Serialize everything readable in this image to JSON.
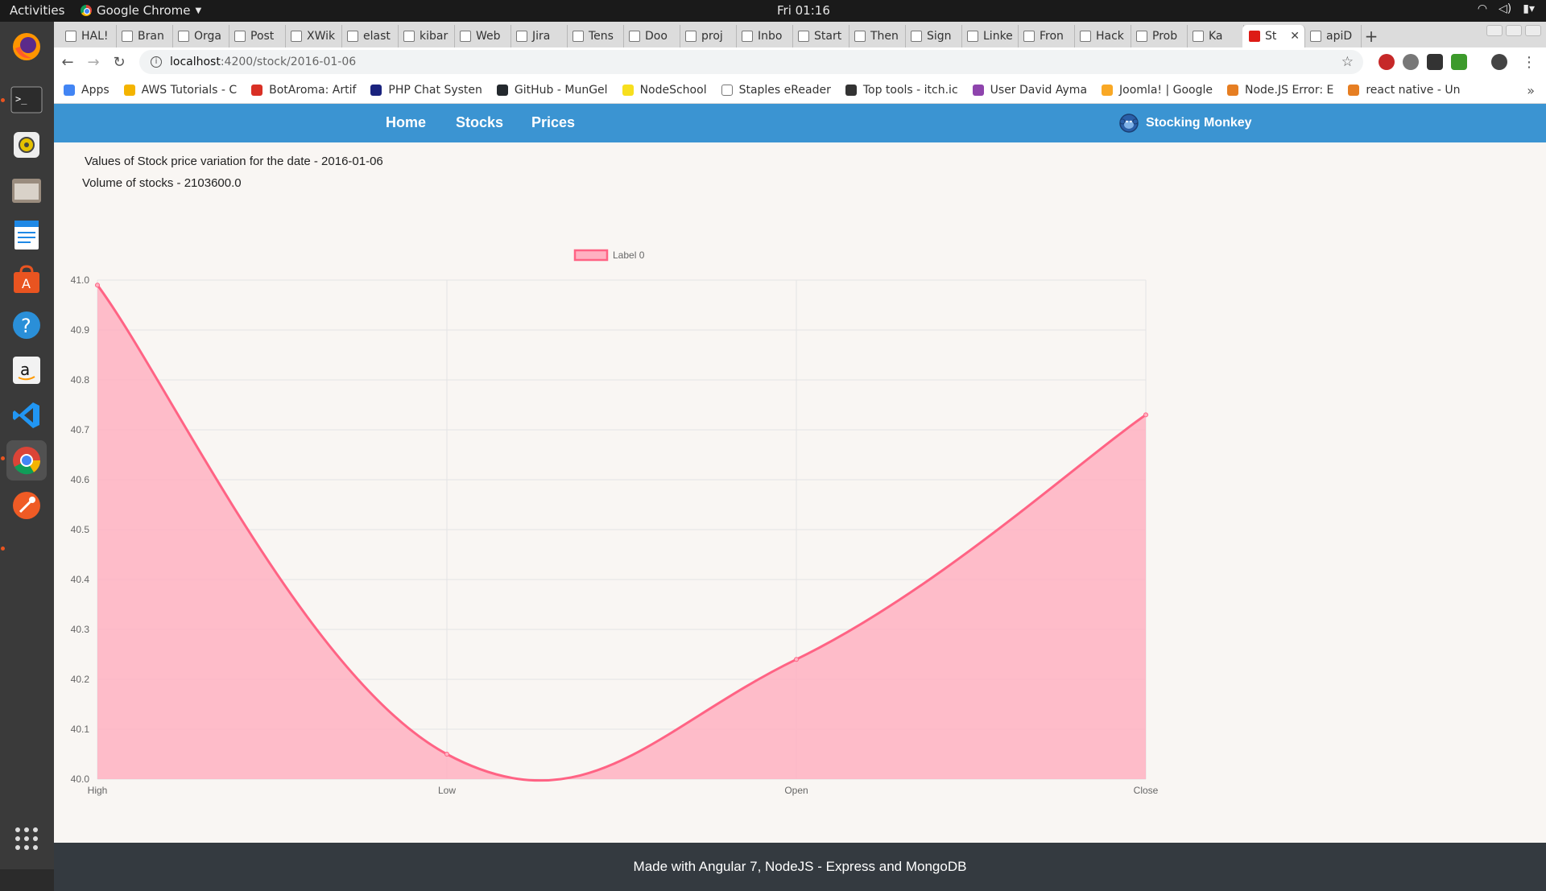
{
  "desktop": {
    "activities": "Activities",
    "app_menu": "Google Chrome",
    "clock": "Fri 01:16"
  },
  "dock": {
    "icons": [
      "firefox-icon",
      "terminal-icon",
      "rhythmbox-icon",
      "files-icon",
      "writer-icon",
      "software-center-icon",
      "help-icon",
      "amazon-icon",
      "vscode-icon",
      "chrome-icon",
      "postman-icon",
      "show-apps-icon"
    ]
  },
  "browser": {
    "tabs": [
      {
        "label": "HAL!"
      },
      {
        "label": "Bran"
      },
      {
        "label": "Orga"
      },
      {
        "label": "Post"
      },
      {
        "label": "XWik"
      },
      {
        "label": "elast"
      },
      {
        "label": "kibar"
      },
      {
        "label": "Web"
      },
      {
        "label": "Jira"
      },
      {
        "label": "Tens"
      },
      {
        "label": "Doo"
      },
      {
        "label": "proj"
      },
      {
        "label": "Inbo"
      },
      {
        "label": "Start"
      },
      {
        "label": "Then"
      },
      {
        "label": "Sign"
      },
      {
        "label": "Linke"
      },
      {
        "label": "Fron"
      },
      {
        "label": "Hack"
      },
      {
        "label": "Prob"
      },
      {
        "label": "Ka"
      },
      {
        "label": "St"
      },
      {
        "label": "apiD"
      }
    ],
    "active_tab_index": 21,
    "url_host": "localhost",
    "url_path": ":4200/stock/2016-01-06",
    "bookmarks": [
      {
        "label": "Apps",
        "color": "#4285f4"
      },
      {
        "label": "AWS Tutorials - C",
        "color": "#f4b400"
      },
      {
        "label": "BotAroma: Artif",
        "color": "#d93025"
      },
      {
        "label": "PHP Chat Systen",
        "color": "#1a237e"
      },
      {
        "label": "GitHub - MunGel",
        "color": "#24292e"
      },
      {
        "label": "NodeSchool",
        "color": "#f7df1e"
      },
      {
        "label": "Staples eReader",
        "color": "#ffffff"
      },
      {
        "label": "Top tools - itch.ic",
        "color": "#333333"
      },
      {
        "label": "User David Ayma",
        "color": "#8e44ad"
      },
      {
        "label": "Joomla! | Google",
        "color": "#f9a825"
      },
      {
        "label": "Node.JS Error: E",
        "color": "#e67e22"
      },
      {
        "label": "react native - Un",
        "color": "#e67e22"
      }
    ]
  },
  "app": {
    "nav": {
      "home": "Home",
      "stocks": "Stocks",
      "prices": "Prices"
    },
    "brand": "Stocking Monkey",
    "date_line": "Values of Stock price variation for the date - 2016-01-06",
    "volume_line": "Volume of stocks - 2103600.0",
    "footer": "Made with Angular 7, NodeJS - Express and MongoDB"
  },
  "chart_data": {
    "type": "line",
    "area_fill": true,
    "categories": [
      "High",
      "Low",
      "Open",
      "Close"
    ],
    "series": [
      {
        "name": "Label 0",
        "values": [
          40.99,
          40.05,
          40.24,
          40.73
        ],
        "color": "#ff6384",
        "fill": "#ffb1c1"
      }
    ],
    "ylim": [
      40.0,
      41.0
    ],
    "yticks": [
      "41.0",
      "40.9",
      "40.8",
      "40.7",
      "40.6",
      "40.5",
      "40.4",
      "40.3",
      "40.2",
      "40.1",
      "40.0"
    ],
    "grid": true,
    "legend": "top-center"
  }
}
